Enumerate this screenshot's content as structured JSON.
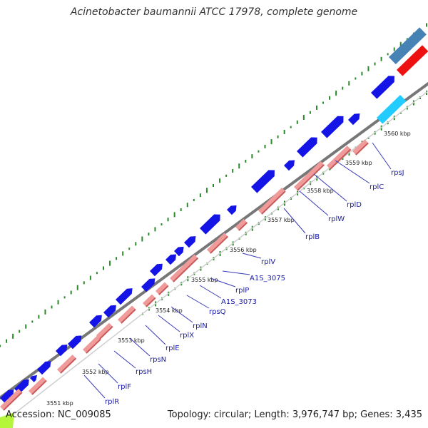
{
  "title": "Acinetobacter baumannii ATCC 17978, complete genome",
  "footer": {
    "accession": "Accession: NC_009085",
    "info": "Topology: circular; Length: 3,976,747 bp; Genes: 3,435"
  },
  "colors": {
    "cds": "#1414e6",
    "rna": "#f09a9a",
    "backbone": "#888888",
    "gc_skew": "#2a8a2a",
    "track_steelblue": "#4682b4",
    "track_red": "#ee1111",
    "track_cyan": "#22ccff",
    "lime": "#b5f53a"
  },
  "kbp_labels": [
    "3551 kbp",
    "3552 kbp",
    "3553 kbp",
    "3554 kbp",
    "3555 kbp",
    "3556 kbp",
    "3557 kbp",
    "3558 kbp",
    "3559 kbp",
    "3560 kbp"
  ],
  "genes": [
    "rplR",
    "rplF",
    "rpsH",
    "rpsN",
    "rplE",
    "rplX",
    "rplN",
    "rpsQ",
    "A1S_3073",
    "rplP",
    "A1S_3075",
    "rplV",
    "rplB",
    "rplW",
    "rplD",
    "rplC",
    "rpsJ"
  ]
}
